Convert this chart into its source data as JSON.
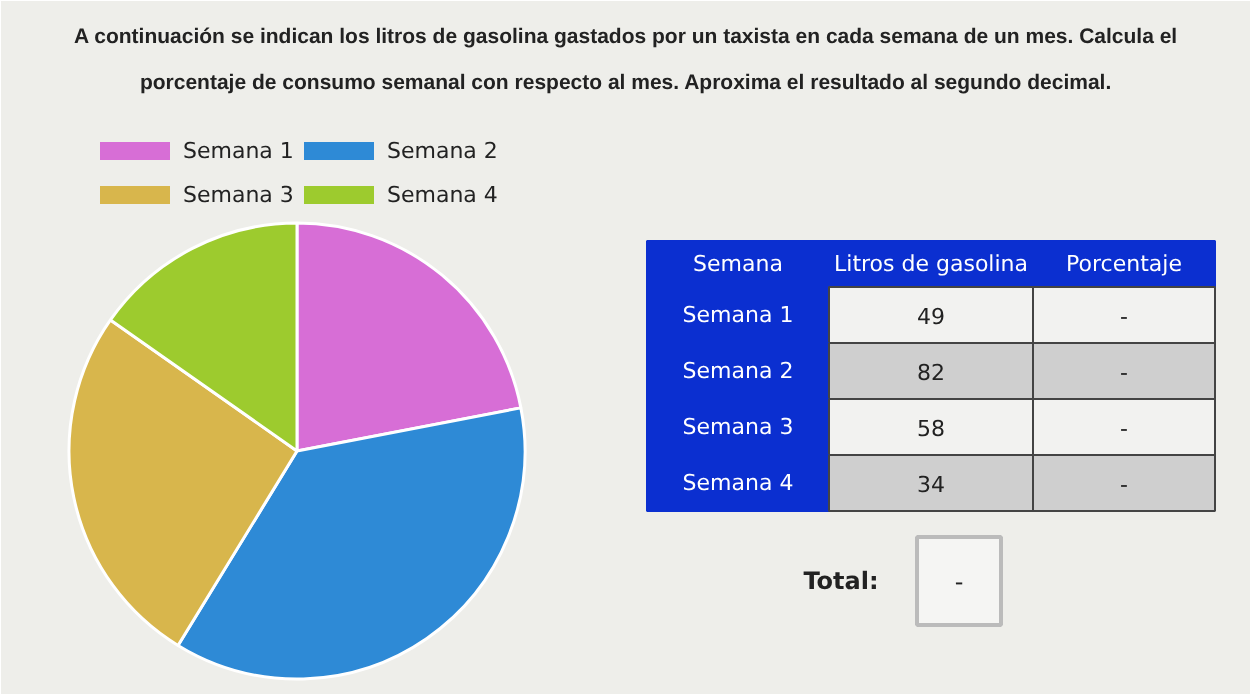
{
  "chart_data": [
    {
      "type": "pie",
      "title": "A continuación se indican los litros de gasolina gastados por un taxista en cada semana de un mes. Calcula el\nporcentaje de consumo semanal con respecto al mes. Aproxima el resultado al segundo decimal.",
      "categories": [
        "Semana 1",
        "Semana 2",
        "Semana 3",
        "Semana 4"
      ],
      "values": [
        21.97,
        36.77,
        26.01,
        15.25
      ],
      "colors": [
        "#d76ed6",
        "#2e8ad6",
        "#d8b64c",
        "#9dcb2e"
      ],
      "legend": "top left"
    },
    {
      "type": "other",
      "categories": [
        "Semana 1",
        "Semana 2",
        "Semana 3",
        "Semana 4"
      ],
      "values": [
        49,
        82,
        58,
        34
      ],
      "data_labels": true,
      "annotations": [
        "Semana",
        "Litros de gasolina",
        "Porcentaje",
        "-",
        "-",
        "-",
        "-",
        "Total:",
        "-"
      ]
    }
  ]
}
